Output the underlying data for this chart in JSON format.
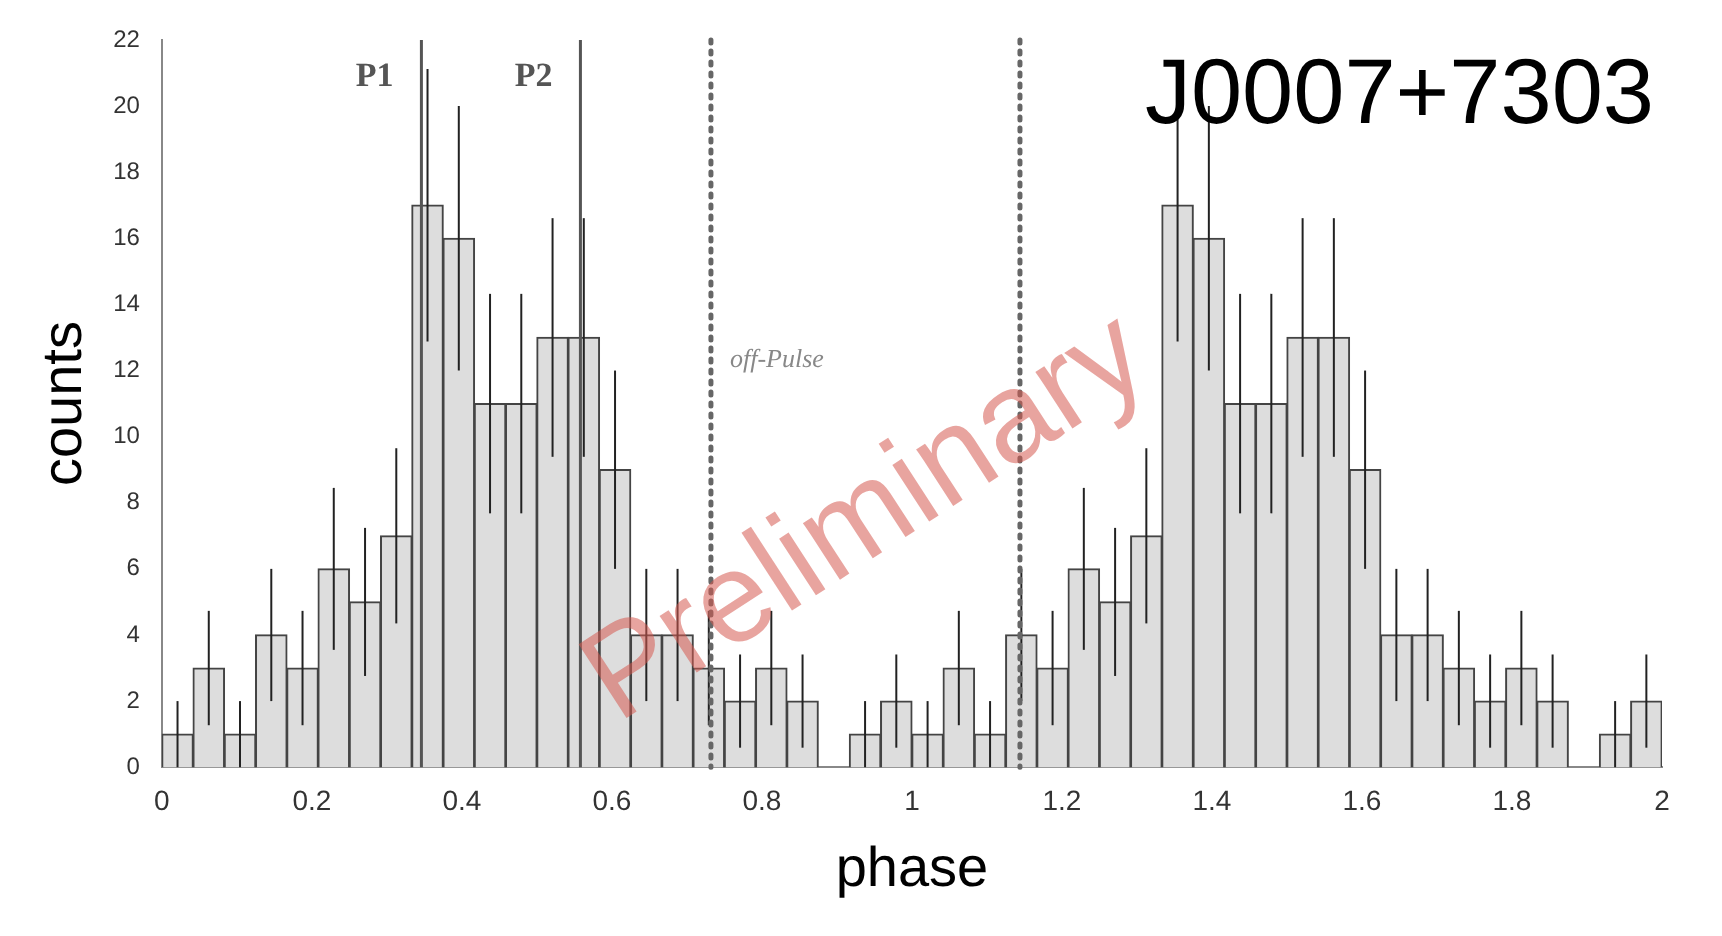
{
  "chart_data": {
    "type": "histogram",
    "title": "J0007+7303",
    "xlabel": "phase",
    "ylabel": "counts",
    "bins": [
      0,
      0.04167,
      0.08333,
      0.125,
      0.1667,
      0.2083,
      0.25,
      0.2917,
      0.3333,
      0.375,
      0.4167,
      0.4583,
      0.5,
      0.5417,
      0.5833,
      0.625,
      0.6667,
      0.7083,
      0.75,
      0.7917,
      0.8333,
      0.875,
      0.9167,
      0.9583,
      1,
      1.0417,
      1.0833,
      1.125,
      1.1667,
      1.2083,
      1.25,
      1.2917,
      1.3333,
      1.375,
      1.4167,
      1.4583,
      1.5,
      1.5417,
      1.5833,
      1.625,
      1.6667,
      1.7083,
      1.75,
      1.7917,
      1.8333,
      1.875,
      1.9167,
      1.9583,
      2
    ],
    "values": [
      1,
      3,
      1,
      4,
      3,
      6,
      5,
      7,
      17,
      16,
      11,
      11,
      13,
      13,
      9,
      4,
      4,
      3,
      2,
      3,
      2,
      0,
      1,
      2,
      1,
      3,
      1,
      4,
      3,
      6,
      5,
      7,
      17,
      16,
      11,
      11,
      13,
      13,
      9,
      4,
      4,
      3,
      2,
      3,
      2,
      0,
      1,
      2
    ],
    "errors": [
      1,
      1.73,
      1,
      2,
      1.73,
      2.45,
      2.24,
      2.65,
      4.12,
      4,
      3.32,
      3.32,
      3.61,
      3.61,
      3,
      2,
      2,
      1.73,
      1.41,
      1.73,
      1.41,
      null,
      1,
      1.41,
      1,
      1.73,
      1,
      2,
      1.73,
      2.45,
      2.24,
      2.65,
      4.12,
      4,
      3.32,
      3.32,
      3.61,
      3.61,
      3,
      2,
      2,
      1.73,
      1.41,
      1.73,
      1.41,
      null,
      1,
      1.41
    ],
    "color": "#dddddd",
    "xlim": [
      0,
      2
    ],
    "xticks": [
      0,
      0.2,
      0.4,
      0.6,
      0.8,
      1,
      1.2,
      1.4,
      1.6,
      1.8,
      2
    ],
    "ylim": [
      0,
      22
    ],
    "yticks": [
      0,
      2,
      4,
      6,
      8,
      10,
      12,
      14,
      16,
      18,
      20,
      22
    ],
    "grid": false,
    "ref_lines": [
      {
        "axis": "x",
        "value": 0.346,
        "label": "P1",
        "color": "#555555",
        "line_style": "solid"
      },
      {
        "axis": "x",
        "value": 0.558,
        "label": "P2",
        "color": "#555555",
        "line_style": "solid"
      },
      {
        "axis": "x",
        "value": 0.732,
        "color": "#666666",
        "line_style": "dotted"
      },
      {
        "axis": "x",
        "value": 1.144,
        "color": "#666666",
        "line_style": "dotted"
      }
    ],
    "annotations": [
      "off-Pulse",
      "Preliminary"
    ]
  }
}
